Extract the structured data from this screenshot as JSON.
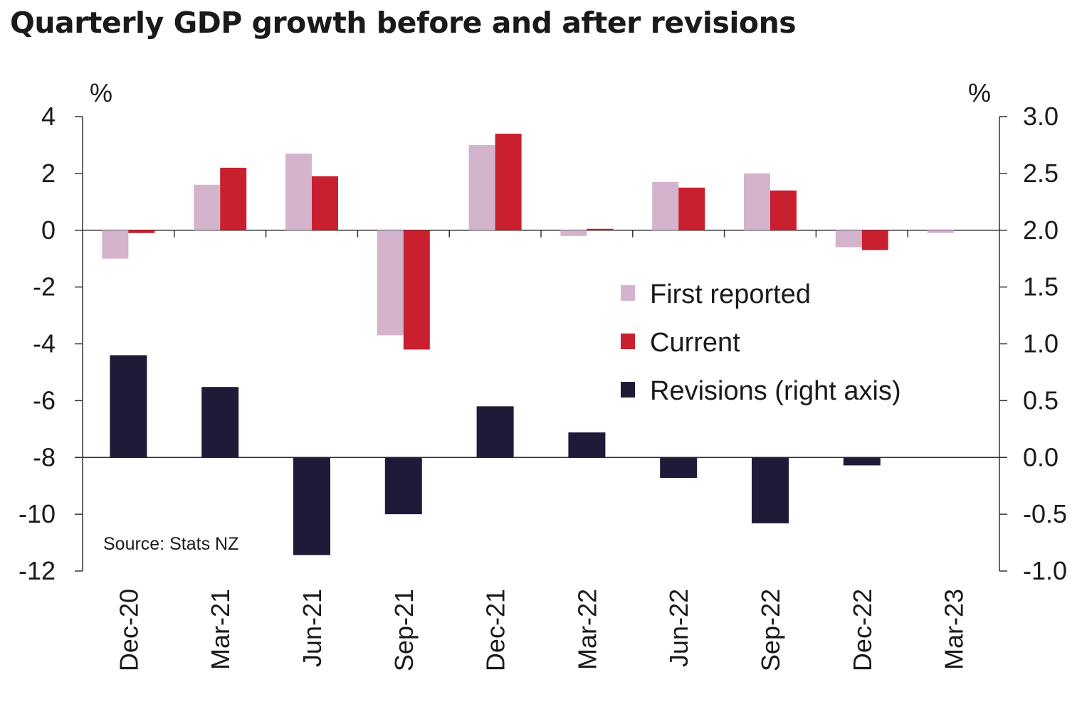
{
  "chart_data": {
    "type": "bar",
    "title": "Quarterly GDP growth before and after revisions",
    "left_unit": "%",
    "right_unit": "%",
    "source": "Source: Stats NZ",
    "categories": [
      "Dec-20",
      "Mar-21",
      "Jun-21",
      "Sep-21",
      "Dec-21",
      "Mar-22",
      "Jun-22",
      "Sep-22",
      "Dec-22",
      "Mar-23"
    ],
    "y_left": {
      "min": -12,
      "max": 4,
      "ticks": [
        "4",
        "2",
        "0",
        "-2",
        "-4",
        "-6",
        "-8",
        "-10",
        "-12"
      ]
    },
    "y_right": {
      "min": -1.0,
      "max": 3.0,
      "ticks": [
        "3.0",
        "2.5",
        "2.0",
        "1.5",
        "1.0",
        "0.5",
        "0.0",
        "-0.5",
        "-1.0"
      ]
    },
    "series": [
      {
        "name": "First reported",
        "axis": "left",
        "color": "#d4b3cc",
        "values": [
          -1.0,
          1.6,
          2.7,
          -3.7,
          3.0,
          -0.2,
          1.7,
          2.0,
          -0.6,
          -0.1
        ]
      },
      {
        "name": "Current",
        "axis": "left",
        "color": "#c8202e",
        "values": [
          -0.1,
          2.2,
          1.9,
          -4.2,
          3.4,
          0.05,
          1.5,
          1.4,
          -0.7,
          null
        ]
      },
      {
        "name": "Revisions (right axis)",
        "axis": "right",
        "color": "#1e1a38",
        "values": [
          0.9,
          0.62,
          -0.86,
          -0.5,
          0.45,
          0.22,
          -0.18,
          -0.58,
          -0.07,
          null
        ]
      }
    ],
    "legend_position": "center-right",
    "grid": false
  }
}
